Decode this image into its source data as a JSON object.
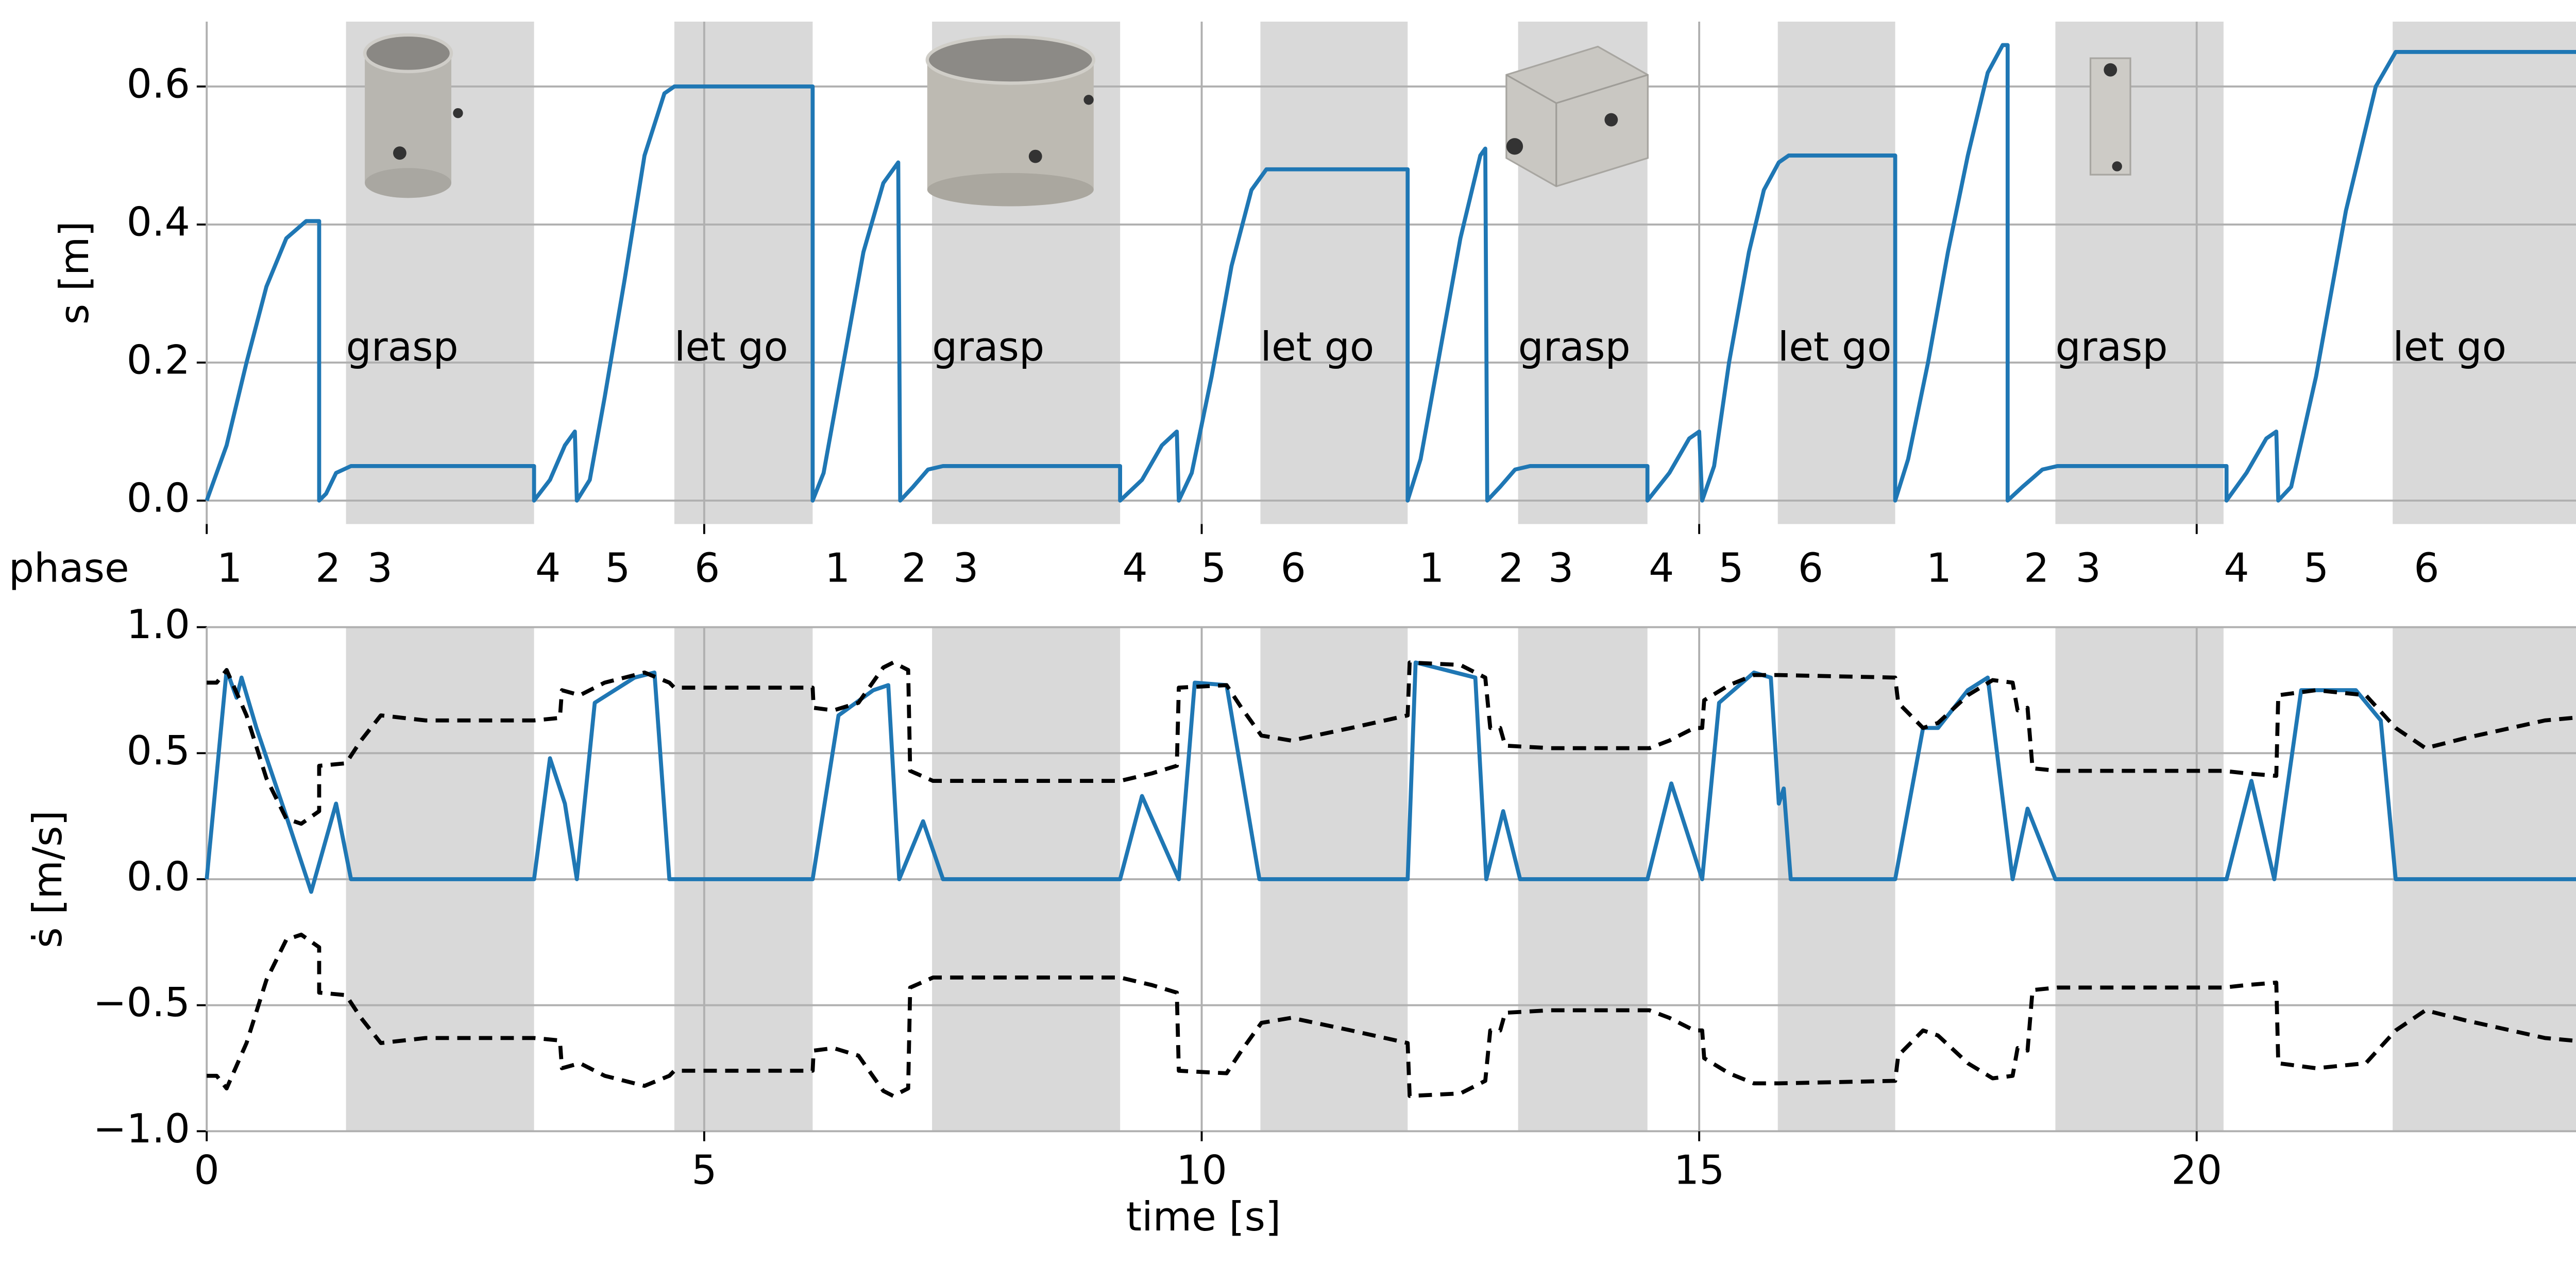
{
  "chart_data": [
    {
      "type": "line",
      "ylabel": "s [m]",
      "xlim": [
        0,
        24.05
      ],
      "xticks": [
        0,
        5,
        10,
        15,
        20
      ],
      "ylim": [
        -0.034,
        0.694
      ],
      "yticks": [
        {
          "value": 0,
          "label": "0.0"
        },
        {
          "value": 0.2,
          "label": "0.2"
        },
        {
          "value": 0.4,
          "label": "0.4"
        },
        {
          "value": 0.6,
          "label": "0.6"
        }
      ],
      "grid": true,
      "regions": [
        {
          "start": 1.4,
          "end": 3.29,
          "label": "grasp"
        },
        {
          "start": 4.7,
          "end": 6.09,
          "label": "let go"
        },
        {
          "start": 7.29,
          "end": 9.18,
          "label": "grasp"
        },
        {
          "start": 10.59,
          "end": 12.07,
          "label": "let go"
        },
        {
          "start": 13.18,
          "end": 14.48,
          "label": "grasp"
        },
        {
          "start": 15.79,
          "end": 16.97,
          "label": "let go"
        },
        {
          "start": 18.58,
          "end": 20.27,
          "label": "grasp"
        },
        {
          "start": 21.97,
          "end": 24.05,
          "label": "let go"
        }
      ],
      "phase_label": "phase",
      "phases": [
        {
          "label": "1",
          "x": 0.23
        },
        {
          "label": "2",
          "x": 1.22
        },
        {
          "label": "3",
          "x": 1.74
        },
        {
          "label": "4",
          "x": 3.43
        },
        {
          "label": "5",
          "x": 4.13
        },
        {
          "label": "6",
          "x": 5.03
        },
        {
          "label": "1",
          "x": 6.34
        },
        {
          "label": "2",
          "x": 7.11
        },
        {
          "label": "3",
          "x": 7.63
        },
        {
          "label": "4",
          "x": 9.33
        },
        {
          "label": "5",
          "x": 10.12
        },
        {
          "label": "6",
          "x": 10.92
        },
        {
          "label": "1",
          "x": 12.31
        },
        {
          "label": "2",
          "x": 13.11
        },
        {
          "label": "3",
          "x": 13.61
        },
        {
          "label": "4",
          "x": 14.62
        },
        {
          "label": "5",
          "x": 15.32
        },
        {
          "label": "6",
          "x": 16.12
        },
        {
          "label": "1",
          "x": 17.41
        },
        {
          "label": "2",
          "x": 18.39
        },
        {
          "label": "3",
          "x": 18.91
        },
        {
          "label": "4",
          "x": 20.4
        },
        {
          "label": "5",
          "x": 21.2
        },
        {
          "label": "6",
          "x": 22.31
        }
      ],
      "series": [
        {
          "color": "#1f77b4",
          "dash": false,
          "x": [
            0,
            0.2,
            0.4,
            0.6,
            0.8,
            1.0,
            1.13,
            1.13,
            1.2,
            1.3,
            1.45,
            3.29,
            3.29,
            3.45,
            3.6,
            3.7,
            3.72,
            3.85,
            4.0,
            4.2,
            4.4,
            4.6,
            4.7,
            6.09,
            6.09,
            6.2,
            6.4,
            6.6,
            6.8,
            6.95,
            6.97,
            7.1,
            7.25,
            7.4,
            9.18,
            9.18,
            9.4,
            9.6,
            9.75,
            9.77,
            9.9,
            10.1,
            10.3,
            10.5,
            10.65,
            12.07,
            12.07,
            12.2,
            12.4,
            12.6,
            12.8,
            12.85,
            12.87,
            13.0,
            13.15,
            13.3,
            14.48,
            14.48,
            14.7,
            14.9,
            15.0,
            15.03,
            15.15,
            15.3,
            15.5,
            15.65,
            15.8,
            15.9,
            16.97,
            16.97,
            17.1,
            17.3,
            17.5,
            17.7,
            17.9,
            18.05,
            18.1,
            18.1,
            18.25,
            18.45,
            18.6,
            20.3,
            20.3,
            20.5,
            20.7,
            20.8,
            20.82,
            20.95,
            21.2,
            21.5,
            21.8,
            22.0,
            24.05
          ],
          "values": [
            0,
            0.08,
            0.2,
            0.31,
            0.38,
            0.405,
            0.405,
            0,
            0.01,
            0.04,
            0.05,
            0.05,
            0,
            0.03,
            0.08,
            0.1,
            0,
            0.03,
            0.15,
            0.32,
            0.5,
            0.59,
            0.6,
            0.6,
            0,
            0.04,
            0.2,
            0.36,
            0.46,
            0.49,
            0,
            0.02,
            0.045,
            0.05,
            0.05,
            0,
            0.03,
            0.08,
            0.1,
            0,
            0.04,
            0.18,
            0.34,
            0.45,
            0.48,
            0.48,
            0,
            0.06,
            0.22,
            0.38,
            0.5,
            0.51,
            0,
            0.02,
            0.045,
            0.05,
            0.05,
            0,
            0.04,
            0.09,
            0.1,
            0,
            0.05,
            0.2,
            0.36,
            0.45,
            0.49,
            0.5,
            0.5,
            0,
            0.06,
            0.2,
            0.36,
            0.5,
            0.62,
            0.66,
            0.66,
            0,
            0.02,
            0.045,
            0.05,
            0.05,
            0,
            0.04,
            0.09,
            0.1,
            0,
            0.02,
            0.18,
            0.42,
            0.6,
            0.65,
            0.65
          ]
        }
      ]
    },
    {
      "type": "line",
      "ylabel": "ṡ [m/s]",
      "xlabel": "time [s]",
      "xlim": [
        0,
        24.05
      ],
      "xticks": [
        0,
        5,
        10,
        15,
        20
      ],
      "ylim": [
        -1,
        1
      ],
      "yticks": [
        {
          "value": -1,
          "label": "−1.0"
        },
        {
          "value": -0.5,
          "label": "−0.5"
        },
        {
          "value": 0,
          "label": "0.0"
        },
        {
          "value": 0.5,
          "label": "0.5"
        },
        {
          "value": 1,
          "label": "1.0"
        }
      ],
      "grid": true,
      "regions": [
        {
          "start": 1.4,
          "end": 3.29
        },
        {
          "start": 4.7,
          "end": 6.09
        },
        {
          "start": 7.29,
          "end": 9.18
        },
        {
          "start": 10.59,
          "end": 12.07
        },
        {
          "start": 13.18,
          "end": 14.48
        },
        {
          "start": 15.79,
          "end": 16.97
        },
        {
          "start": 18.58,
          "end": 20.27
        },
        {
          "start": 21.97,
          "end": 24.05
        }
      ],
      "series": [
        {
          "color": "#1f77b4",
          "dash": false,
          "x": [
            0,
            0.2,
            0.3,
            0.35,
            0.5,
            0.8,
            1.05,
            1.3,
            1.45,
            3.29,
            3.45,
            3.6,
            3.72,
            3.9,
            4.3,
            4.5,
            4.65,
            6.09,
            6.35,
            6.7,
            6.85,
            6.96,
            7.2,
            7.4,
            9.18,
            9.4,
            9.77,
            9.93,
            10.25,
            10.58,
            12.07,
            12.15,
            12.75,
            12.86,
            13.03,
            13.2,
            14.48,
            14.72,
            15.03,
            15.2,
            15.55,
            15.72,
            15.8,
            15.85,
            15.92,
            16.97,
            17.25,
            17.4,
            17.7,
            17.9,
            18.15,
            18.3,
            18.58,
            20.3,
            20.55,
            20.78,
            21.05,
            21.6,
            21.85,
            22.0,
            24.05
          ],
          "values": [
            0,
            0.83,
            0.72,
            0.8,
            0.6,
            0.25,
            -0.05,
            0.3,
            0,
            0,
            0.48,
            0.3,
            0,
            0.7,
            0.8,
            0.82,
            0,
            0,
            0.65,
            0.75,
            0.77,
            0,
            0.23,
            0,
            0,
            0.33,
            0,
            0.78,
            0.77,
            0,
            0,
            0.86,
            0.8,
            0,
            0.27,
            0,
            0,
            0.38,
            0,
            0.7,
            0.82,
            0.8,
            0.3,
            0.36,
            0,
            0,
            0.6,
            0.6,
            0.75,
            0.8,
            0,
            0.28,
            0,
            0,
            0.39,
            0,
            0.75,
            0.75,
            0.63,
            0,
            0
          ]
        },
        {
          "color": "#000000",
          "dash": true,
          "x": [
            0,
            0.1,
            0.2,
            0.4,
            0.6,
            0.8,
            0.95,
            1.13,
            1.13,
            1.4,
            1.55,
            1.75,
            2.2,
            3.29,
            3.55,
            3.57,
            3.75,
            4.0,
            4.4,
            4.65,
            4.7,
            6.09,
            6.1,
            6.3,
            6.55,
            6.8,
            6.9,
            7.05,
            7.07,
            7.3,
            9.18,
            9.5,
            9.75,
            9.77,
            10.25,
            10.4,
            10.6,
            10.9,
            11.5,
            12.07,
            12.09,
            12.6,
            12.85,
            12.9,
            13.0,
            13.05,
            13.5,
            14.5,
            14.7,
            14.95,
            15.03,
            15.05,
            15.3,
            15.55,
            15.8,
            16.97,
            17.0,
            17.25,
            17.4,
            17.7,
            17.95,
            18.15,
            18.2,
            18.3,
            18.35,
            18.6,
            20.27,
            20.5,
            20.8,
            20.82,
            21.2,
            21.7,
            22.0,
            22.3,
            22.7,
            23.5,
            24.05
          ],
          "values": [
            0.78,
            0.78,
            0.83,
            0.65,
            0.4,
            0.24,
            0.22,
            0.27,
            0.45,
            0.46,
            0.55,
            0.65,
            0.63,
            0.63,
            0.64,
            0.75,
            0.73,
            0.78,
            0.82,
            0.78,
            0.76,
            0.76,
            0.68,
            0.67,
            0.7,
            0.84,
            0.86,
            0.83,
            0.43,
            0.39,
            0.39,
            0.42,
            0.45,
            0.76,
            0.77,
            0.68,
            0.57,
            0.55,
            0.6,
            0.65,
            0.86,
            0.85,
            0.8,
            0.6,
            0.6,
            0.53,
            0.52,
            0.52,
            0.55,
            0.6,
            0.6,
            0.71,
            0.77,
            0.81,
            0.81,
            0.8,
            0.7,
            0.6,
            0.62,
            0.73,
            0.79,
            0.78,
            0.67,
            0.68,
            0.44,
            0.43,
            0.43,
            0.42,
            0.41,
            0.73,
            0.75,
            0.73,
            0.6,
            0.52,
            0.56,
            0.63,
            0.65
          ]
        },
        {
          "color": "#000000",
          "dash": true,
          "x": [
            0,
            0.1,
            0.2,
            0.4,
            0.6,
            0.8,
            0.95,
            1.13,
            1.13,
            1.4,
            1.55,
            1.75,
            2.2,
            3.29,
            3.55,
            3.57,
            3.75,
            4.0,
            4.4,
            4.65,
            4.7,
            6.09,
            6.1,
            6.3,
            6.55,
            6.8,
            6.9,
            7.05,
            7.07,
            7.3,
            9.18,
            9.5,
            9.75,
            9.77,
            10.25,
            10.4,
            10.6,
            10.9,
            11.5,
            12.07,
            12.09,
            12.6,
            12.85,
            12.9,
            13.0,
            13.05,
            13.5,
            14.5,
            14.7,
            14.95,
            15.03,
            15.05,
            15.3,
            15.55,
            15.8,
            16.97,
            17.0,
            17.25,
            17.4,
            17.7,
            17.95,
            18.15,
            18.2,
            18.3,
            18.35,
            18.6,
            20.27,
            20.5,
            20.8,
            20.82,
            21.2,
            21.7,
            22.0,
            22.3,
            22.7,
            23.5,
            24.05
          ],
          "values": [
            -0.78,
            -0.78,
            -0.83,
            -0.65,
            -0.4,
            -0.24,
            -0.22,
            -0.27,
            -0.45,
            -0.46,
            -0.55,
            -0.65,
            -0.63,
            -0.63,
            -0.64,
            -0.75,
            -0.73,
            -0.78,
            -0.82,
            -0.78,
            -0.76,
            -0.76,
            -0.68,
            -0.67,
            -0.7,
            -0.84,
            -0.86,
            -0.83,
            -0.43,
            -0.39,
            -0.39,
            -0.42,
            -0.45,
            -0.76,
            -0.77,
            -0.68,
            -0.57,
            -0.55,
            -0.6,
            -0.65,
            -0.86,
            -0.85,
            -0.8,
            -0.6,
            -0.6,
            -0.53,
            -0.52,
            -0.52,
            -0.55,
            -0.6,
            -0.6,
            -0.71,
            -0.77,
            -0.81,
            -0.81,
            -0.8,
            -0.7,
            -0.6,
            -0.62,
            -0.73,
            -0.79,
            -0.78,
            -0.67,
            -0.68,
            -0.44,
            -0.43,
            -0.43,
            -0.42,
            -0.41,
            -0.73,
            -0.75,
            -0.73,
            -0.6,
            -0.52,
            -0.56,
            -0.63,
            -0.65
          ]
        }
      ]
    }
  ]
}
